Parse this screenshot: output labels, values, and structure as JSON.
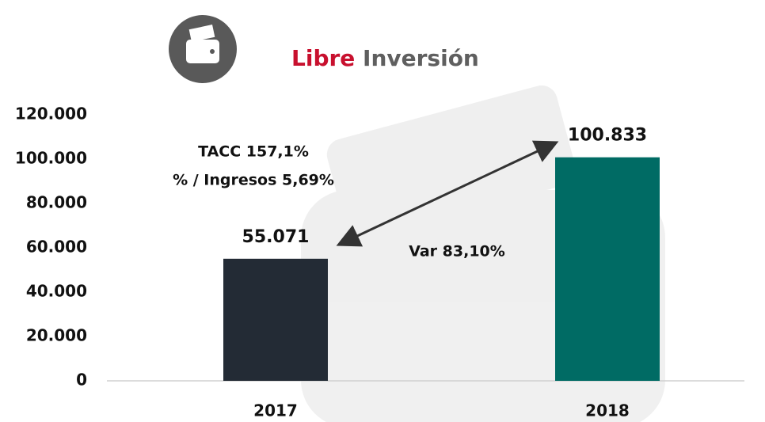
{
  "chart_data": {
    "type": "bar",
    "title": [
      "Libre",
      "Inversión"
    ],
    "title_colors": [
      "#c8102e",
      "#5f5f5f"
    ],
    "categories": [
      "2017",
      "2018"
    ],
    "values": [
      55071,
      100833
    ],
    "value_labels": [
      "55.071",
      "100.833"
    ],
    "colors": [
      "#232b35",
      "#006b64"
    ],
    "ylim": [
      0,
      120000
    ],
    "yticks": [
      0,
      {
        "value": 20000,
        "label": "20.000"
      },
      {
        "value": 40000,
        "label": "40.000"
      },
      {
        "value": 60000,
        "label": "60.000"
      },
      {
        "value": 80000,
        "label": "80.000"
      },
      {
        "value": 100000,
        "label": "100.000"
      },
      {
        "value": 120000,
        "label": "120.000"
      }
    ],
    "grid": false,
    "annotations": [
      "TACC 157,1%",
      "% / Ingresos 5,69%",
      "Var 83,10%"
    ]
  }
}
